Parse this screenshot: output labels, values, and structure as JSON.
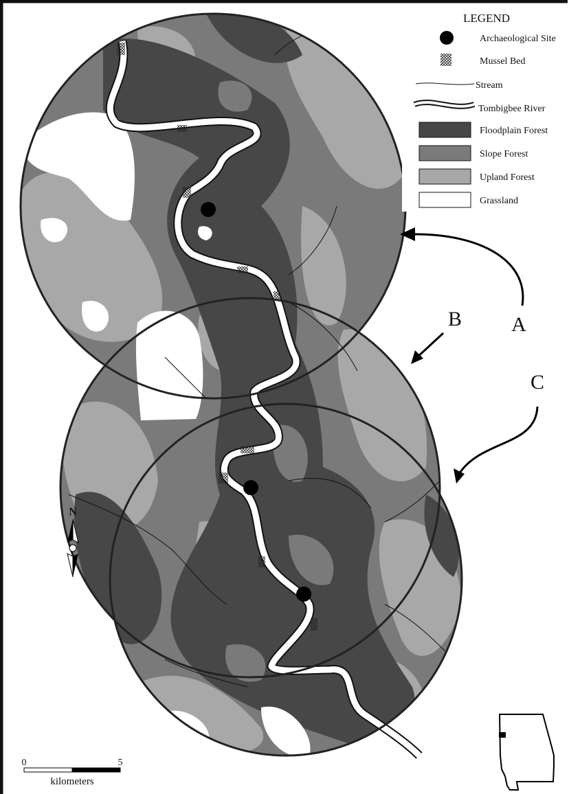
{
  "legend": {
    "title": "LEGEND",
    "items": [
      "Archaeological Site",
      "Mussel Bed",
      "Stream",
      "Tombigbee River",
      "Floodplain Forest",
      "Slope Forest",
      "Upland Forest",
      "Grassland"
    ]
  },
  "circle_labels": [
    "A",
    "B",
    "C"
  ],
  "north": "N",
  "scale": {
    "ticks": [
      0,
      5
    ],
    "unit": "kilometers"
  }
}
